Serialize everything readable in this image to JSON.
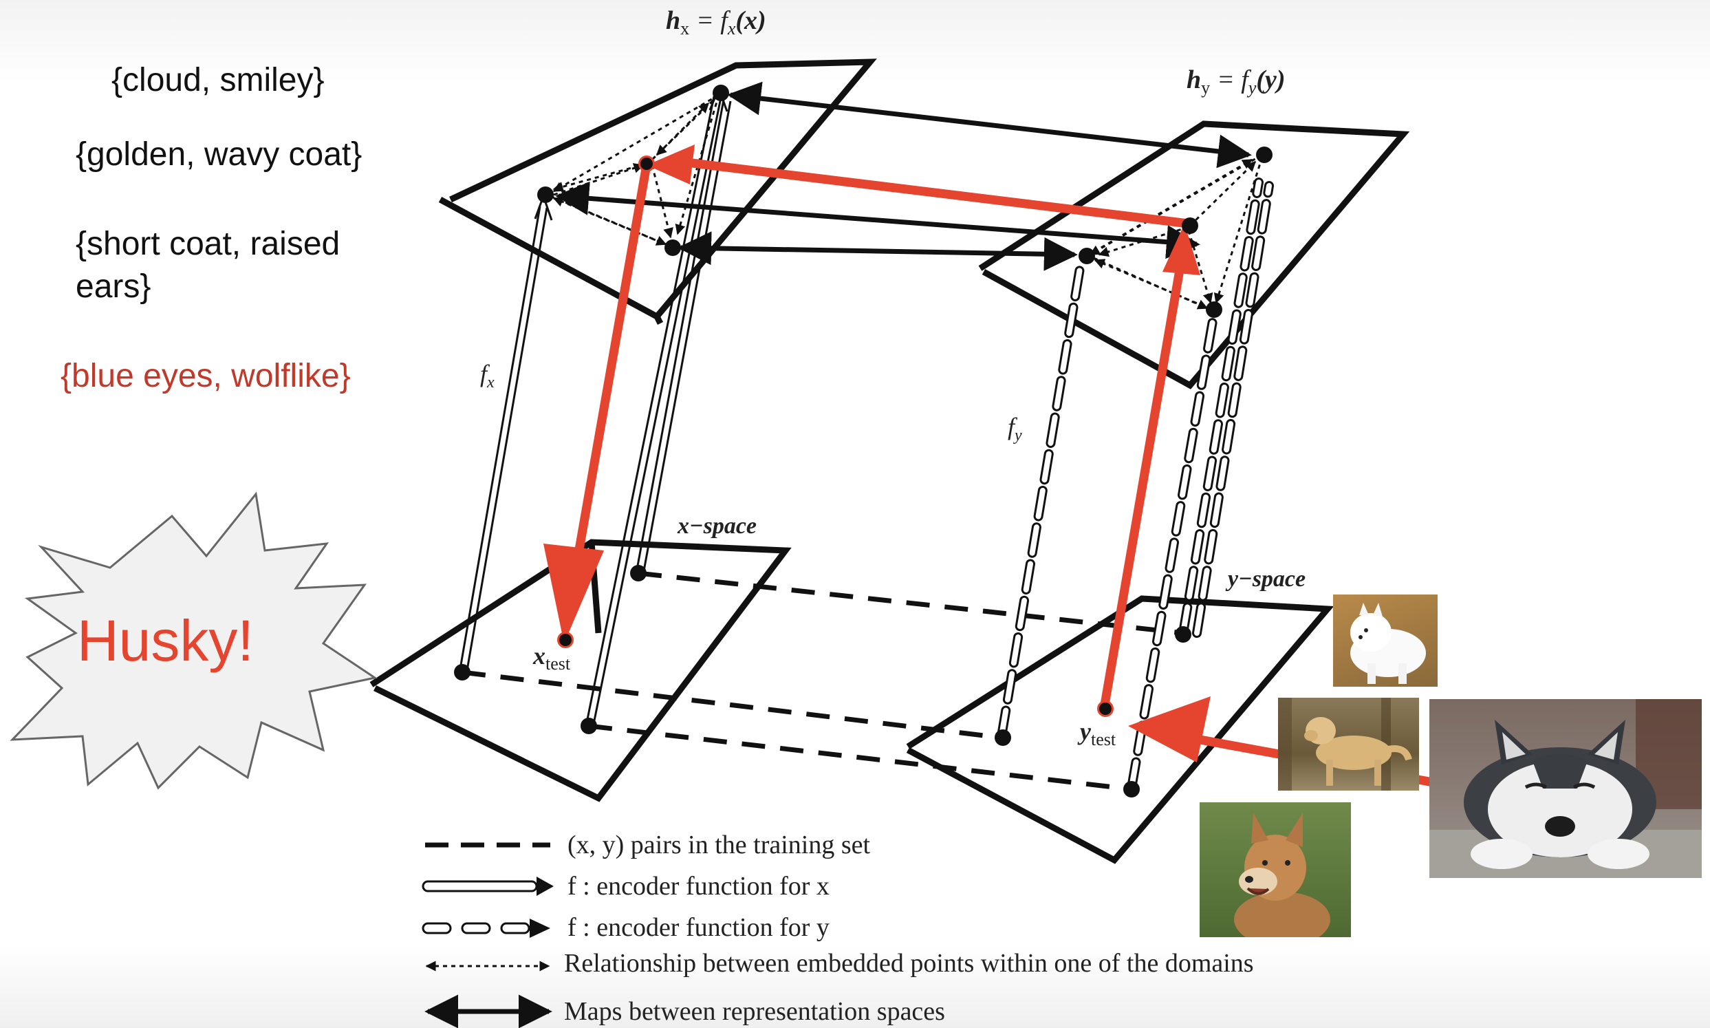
{
  "attributes": [
    {
      "text": "{cloud, smiley}",
      "color": "#111111"
    },
    {
      "text": "{golden, wavy coat}",
      "color": "#111111"
    },
    {
      "text": "{short coat, raised",
      "color": "#111111"
    },
    {
      "text": "ears}",
      "color": "#111111"
    },
    {
      "text": "{blue eyes, wolflike}",
      "color": "#c0392b"
    }
  ],
  "burst": {
    "text": "Husky!",
    "color": "#e5442f"
  },
  "labels": {
    "hx": "h",
    "hx_sub": "x",
    "hx_rhs": "= f",
    "hx_arg": "(x)",
    "hy": "h",
    "hy_sub": "y",
    "hy_rhs": "= f",
    "hy_arg": "(y)",
    "fx": "f",
    "fx_sub": "x",
    "fy": "f",
    "fy_sub": "y",
    "x_space": "x−space",
    "y_space": "y−space",
    "x_test": "x",
    "x_test_sub": "test",
    "y_test": "y",
    "y_test_sub": "test"
  },
  "legend": [
    {
      "icon": "dashed-line-icon",
      "text": "(x, y) pairs in the training set"
    },
    {
      "icon": "double-arrow-icon",
      "text": "f : encoder function for x"
    },
    {
      "icon": "dashed-double-arrow-icon",
      "text": "f : encoder function for y"
    },
    {
      "icon": "dotted-arrow-icon",
      "text": "Relationship between embedded points within one of the domains"
    },
    {
      "icon": "bidirectional-arrow-icon",
      "text": "Maps between representation spaces"
    }
  ],
  "legend_subs": [
    "x",
    "y"
  ],
  "accent_color": "#e5442f",
  "photos": [
    {
      "name": "samoyed-photo",
      "caption": "white fluffy dog"
    },
    {
      "name": "golden-retriever-photo",
      "caption": "golden dog"
    },
    {
      "name": "shiba-photo",
      "caption": "short-coat dog"
    },
    {
      "name": "husky-photo",
      "caption": "husky puppy"
    }
  ]
}
